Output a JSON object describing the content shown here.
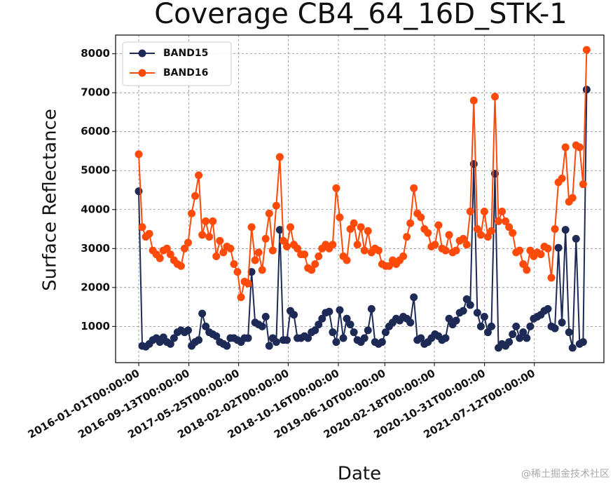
{
  "chart_data": {
    "type": "line",
    "title": "Coverage CB4_64_16D_STK-1",
    "xlabel": "Date",
    "ylabel": "Surface Reflectance",
    "watermark": "@稀土掘金技术社区",
    "legend": "upper left",
    "grid": true,
    "xlim": [
      "2015-09-05",
      "2022-07-02"
    ],
    "ylim": [
      70,
      8480
    ],
    "xticks": [
      "2016-01-01T00:00:00",
      "2016-09-13T00:00:00",
      "2017-05-25T00:00:00",
      "2018-02-02T00:00:00",
      "2018-10-16T00:00:00",
      "2019-06-10T00:00:00",
      "2020-02-18T00:00:00",
      "2020-10-31T00:00:00",
      "2021-07-12T00:00:00"
    ],
    "yticks": [
      1000,
      2000,
      3000,
      4000,
      5000,
      6000,
      7000,
      8000
    ],
    "x": [
      "2016-01-01",
      "2016-01-19",
      "2016-02-06",
      "2016-02-24",
      "2016-03-13",
      "2016-03-31",
      "2016-04-18",
      "2016-05-06",
      "2016-05-24",
      "2016-06-11",
      "2016-06-29",
      "2016-07-17",
      "2016-08-04",
      "2016-08-22",
      "2016-09-09",
      "2016-09-27",
      "2016-10-15",
      "2016-11-02",
      "2016-11-20",
      "2016-12-08",
      "2016-12-26",
      "2017-01-13",
      "2017-01-31",
      "2017-02-18",
      "2017-03-08",
      "2017-03-26",
      "2017-04-13",
      "2017-05-01",
      "2017-05-19",
      "2017-06-06",
      "2017-06-24",
      "2017-07-12",
      "2017-07-30",
      "2017-08-17",
      "2017-09-04",
      "2017-09-22",
      "2017-10-10",
      "2017-10-28",
      "2017-11-15",
      "2017-12-03",
      "2017-12-21",
      "2018-01-08",
      "2018-01-26",
      "2018-02-13",
      "2018-03-03",
      "2018-03-21",
      "2018-04-08",
      "2018-04-26",
      "2018-05-14",
      "2018-06-01",
      "2018-06-19",
      "2018-07-07",
      "2018-07-25",
      "2018-08-12",
      "2018-08-30",
      "2018-09-17",
      "2018-10-05",
      "2018-10-23",
      "2018-11-10",
      "2018-11-28",
      "2018-12-16",
      "2019-01-03",
      "2019-01-21",
      "2019-02-08",
      "2019-02-26",
      "2019-03-16",
      "2019-04-03",
      "2019-04-21",
      "2019-05-09",
      "2019-05-27",
      "2019-06-14",
      "2019-07-02",
      "2019-07-20",
      "2019-08-07",
      "2019-08-25",
      "2019-09-12",
      "2019-09-30",
      "2019-10-18",
      "2019-11-05",
      "2019-11-23",
      "2019-12-11",
      "2019-12-29",
      "2020-01-16",
      "2020-02-03",
      "2020-02-21",
      "2020-03-10",
      "2020-03-28",
      "2020-04-15",
      "2020-05-03",
      "2020-05-21",
      "2020-06-08",
      "2020-06-26",
      "2020-07-14",
      "2020-08-01",
      "2020-08-19",
      "2020-09-06",
      "2020-09-24",
      "2020-10-12",
      "2020-10-30",
      "2020-11-17",
      "2020-12-05",
      "2020-12-23",
      "2021-01-10",
      "2021-01-28",
      "2021-02-15",
      "2021-03-05",
      "2021-03-23",
      "2021-04-10",
      "2021-04-28",
      "2021-05-16",
      "2021-06-03",
      "2021-06-21",
      "2021-07-09",
      "2021-07-27",
      "2021-08-14",
      "2021-09-01",
      "2021-09-19",
      "2021-10-07",
      "2021-10-25",
      "2021-11-12",
      "2021-11-30",
      "2021-12-18",
      "2022-01-05",
      "2022-01-23",
      "2022-02-10",
      "2022-02-28",
      "2022-03-18",
      "2022-04-05"
    ],
    "series": [
      {
        "name": "BAND15",
        "color": "#1c2a55",
        "values": [
          4470,
          500,
          480,
          550,
          650,
          700,
          600,
          720,
          600,
          550,
          700,
          850,
          900,
          850,
          900,
          500,
          600,
          650,
          1330,
          1000,
          850,
          800,
          750,
          600,
          550,
          500,
          700,
          700,
          650,
          600,
          700,
          700,
          2400,
          1100,
          1050,
          1000,
          1250,
          500,
          700,
          600,
          3480,
          650,
          650,
          1400,
          1300,
          700,
          700,
          750,
          700,
          850,
          900,
          1050,
          1200,
          1350,
          1380,
          850,
          600,
          1420,
          700,
          1200,
          1050,
          850,
          650,
          600,
          700,
          900,
          1450,
          600,
          550,
          600,
          850,
          1000,
          1100,
          1200,
          1150,
          1250,
          1200,
          1100,
          1750,
          650,
          700,
          550,
          600,
          700,
          800,
          750,
          650,
          700,
          1200,
          1050,
          1150,
          1350,
          1400,
          1700,
          1550,
          5170,
          1350,
          1000,
          1250,
          850,
          1000,
          4920,
          450,
          550,
          500,
          600,
          800,
          1000,
          700,
          850,
          700,
          1000,
          1200,
          1250,
          1300,
          1400,
          1450,
          1000,
          950,
          3020,
          1100,
          3480,
          850,
          450,
          3250,
          550,
          600,
          7080
        ]
      },
      {
        "name": "BAND16",
        "color": "#ff4a0a",
        "values": [
          5420,
          3550,
          3300,
          3380,
          2950,
          2850,
          2750,
          2950,
          3000,
          2850,
          2700,
          2600,
          2550,
          3000,
          3150,
          3900,
          4350,
          4880,
          3350,
          3700,
          3300,
          3700,
          2800,
          3200,
          2900,
          3050,
          3000,
          2600,
          2400,
          1750,
          2150,
          2100,
          3550,
          2700,
          2900,
          2450,
          3250,
          3900,
          2950,
          4100,
          5350,
          3200,
          3050,
          3550,
          3100,
          3000,
          2850,
          2850,
          2500,
          2450,
          2600,
          2800,
          3000,
          3100,
          3000,
          3100,
          4550,
          3800,
          2800,
          2700,
          3500,
          3650,
          3100,
          3550,
          2950,
          3450,
          2900,
          3000,
          2950,
          2600,
          2550,
          2550,
          2700,
          2600,
          2700,
          2800,
          3300,
          3650,
          4550,
          3900,
          3800,
          3500,
          3400,
          3050,
          3100,
          3600,
          3000,
          2950,
          3350,
          2900,
          2950,
          3200,
          3250,
          3100,
          3950,
          6800,
          3500,
          3350,
          3950,
          3300,
          3450,
          6900,
          3700,
          3950,
          3700,
          3550,
          3400,
          2900,
          2950,
          2600,
          2450,
          2950,
          2800,
          2900,
          2850,
          3050,
          3000,
          2250,
          3500,
          4700,
          4800,
          5600,
          4200,
          4300,
          5650,
          5600,
          4650,
          8100
        ]
      }
    ]
  }
}
